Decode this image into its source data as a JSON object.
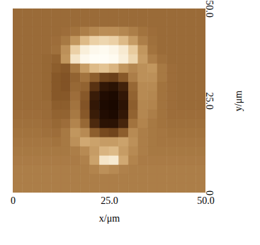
{
  "chart_data": {
    "type": "heatmap",
    "x_label": "x/μm",
    "y_label": "y/μm",
    "xlim": [
      0,
      50
    ],
    "ylim": [
      0,
      50
    ],
    "xticks": [
      0,
      {
        "value": 25,
        "label": "25.0"
      },
      {
        "value": 50,
        "label": "50.0"
      }
    ],
    "yticks": [
      0,
      {
        "value": 25,
        "label": "25.0"
      },
      {
        "value": 50,
        "label": "50.0"
      }
    ],
    "x_edges": [
      0,
      2.5,
      5,
      7.5,
      10,
      12.5,
      15,
      17.5,
      20,
      22.5,
      25,
      27.5,
      30,
      32.5,
      35,
      37.5,
      40,
      42.5,
      45,
      47.5,
      50
    ],
    "y_edges": [
      50,
      47.5,
      45,
      42.5,
      40,
      37.5,
      35,
      32.5,
      30,
      27.5,
      25,
      22.5,
      20,
      17.5,
      15,
      12.5,
      10,
      7.5,
      5,
      2.5,
      0
    ],
    "z": [
      [
        45,
        45,
        45,
        45,
        45,
        45,
        45,
        45,
        45,
        45,
        45,
        45,
        45,
        45,
        45,
        45,
        45,
        45,
        45,
        45
      ],
      [
        45,
        45,
        45,
        45,
        45,
        45,
        45,
        45,
        45,
        45,
        45,
        45,
        45,
        45,
        45,
        45,
        45,
        45,
        45,
        45
      ],
      [
        45,
        45,
        45,
        45,
        45,
        46,
        48,
        52,
        55,
        57,
        57,
        55,
        52,
        48,
        46,
        45,
        45,
        45,
        45,
        45
      ],
      [
        45,
        45,
        45,
        45,
        46,
        50,
        60,
        72,
        80,
        82,
        80,
        72,
        62,
        52,
        47,
        45,
        45,
        45,
        45,
        45
      ],
      [
        45,
        45,
        45,
        45,
        47,
        58,
        80,
        92,
        96,
        97,
        95,
        90,
        78,
        60,
        48,
        45,
        45,
        45,
        45,
        45
      ],
      [
        45,
        45,
        45,
        44,
        42,
        60,
        88,
        96,
        98,
        98,
        97,
        92,
        82,
        62,
        52,
        47,
        45,
        45,
        45,
        45
      ],
      [
        45,
        45,
        45,
        44,
        40,
        38,
        50,
        62,
        72,
        75,
        70,
        60,
        55,
        58,
        60,
        50,
        46,
        45,
        45,
        45
      ],
      [
        45,
        45,
        45,
        44,
        38,
        36,
        42,
        48,
        40,
        30,
        28,
        38,
        52,
        58,
        58,
        50,
        46,
        45,
        45,
        45
      ],
      [
        45,
        45,
        45,
        44,
        38,
        36,
        44,
        42,
        22,
        10,
        8,
        15,
        44,
        56,
        56,
        48,
        46,
        45,
        45,
        45
      ],
      [
        45,
        45,
        45,
        44,
        38,
        38,
        46,
        38,
        12,
        5,
        4,
        10,
        42,
        56,
        55,
        48,
        46,
        45,
        45,
        45
      ],
      [
        45,
        45,
        45,
        45,
        40,
        40,
        48,
        36,
        10,
        4,
        3,
        8,
        40,
        55,
        54,
        48,
        46,
        45,
        45,
        45
      ],
      [
        46,
        46,
        46,
        45,
        42,
        42,
        50,
        38,
        12,
        5,
        4,
        10,
        42,
        55,
        52,
        48,
        46,
        46,
        46,
        46
      ],
      [
        47,
        47,
        47,
        46,
        44,
        46,
        54,
        44,
        18,
        8,
        8,
        16,
        48,
        54,
        50,
        48,
        47,
        47,
        47,
        47
      ],
      [
        48,
        48,
        48,
        47,
        46,
        50,
        60,
        56,
        40,
        32,
        30,
        40,
        56,
        52,
        50,
        49,
        48,
        48,
        48,
        48
      ],
      [
        49,
        49,
        49,
        49,
        48,
        50,
        58,
        66,
        64,
        62,
        62,
        64,
        58,
        52,
        50,
        49,
        49,
        49,
        49,
        49
      ],
      [
        50,
        50,
        50,
        50,
        50,
        50,
        52,
        56,
        62,
        70,
        72,
        62,
        56,
        52,
        50,
        50,
        50,
        50,
        50,
        50
      ],
      [
        51,
        51,
        51,
        51,
        51,
        51,
        51,
        53,
        64,
        88,
        90,
        66,
        54,
        51,
        51,
        51,
        51,
        51,
        51,
        51
      ],
      [
        52,
        52,
        52,
        52,
        52,
        52,
        52,
        52,
        54,
        58,
        56,
        53,
        52,
        52,
        52,
        52,
        52,
        52,
        52,
        52
      ],
      [
        52,
        52,
        52,
        52,
        52,
        52,
        52,
        52,
        52,
        52,
        52,
        52,
        52,
        52,
        52,
        52,
        52,
        52,
        52,
        52
      ],
      [
        52,
        52,
        52,
        52,
        52,
        52,
        52,
        52,
        52,
        52,
        52,
        52,
        52,
        52,
        52,
        52,
        52,
        52,
        52,
        52
      ]
    ]
  }
}
